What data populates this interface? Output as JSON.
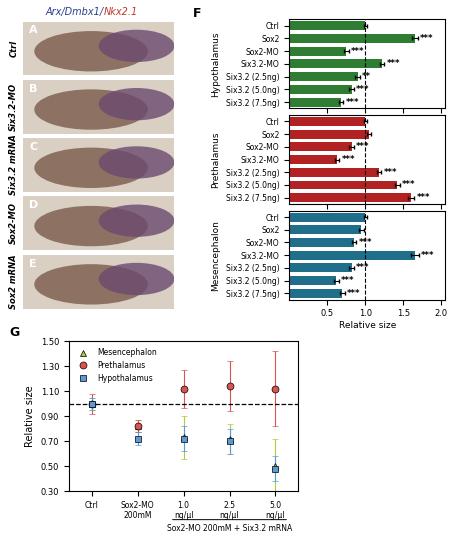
{
  "images": {
    "header": [
      {
        "text": "Arx/Dmbx1/",
        "color": "#2a3f8f"
      },
      {
        "text": "Nkx2.1",
        "color": "#c0392b"
      }
    ],
    "panels": [
      {
        "letter": "A",
        "label": "Ctrl"
      },
      {
        "letter": "B",
        "label": "Six3.2-MO"
      },
      {
        "letter": "C",
        "label": "Six3.2 mRNA"
      },
      {
        "letter": "D",
        "label": "Sox2-MO"
      },
      {
        "letter": "E",
        "label": "Sox2 mRNA"
      }
    ]
  },
  "chart_data": [
    {
      "type": "bar",
      "orientation": "horizontal",
      "panel_label": "F",
      "group": "Hypothalamus",
      "color": "#2e7d32",
      "categories": [
        "Ctrl",
        "Sox2",
        "Sox2-MO",
        "Six3.2-MO",
        "Six3.2 (2.5ng)",
        "Six3.2 (5.0ng)",
        "Six3.2 (7.5ng)"
      ],
      "values": [
        1.0,
        1.65,
        0.75,
        1.22,
        0.9,
        0.82,
        0.68
      ],
      "errors": [
        0.02,
        0.04,
        0.03,
        0.03,
        0.03,
        0.03,
        0.03
      ],
      "significance": [
        null,
        "***",
        "***",
        "***",
        "**",
        "***",
        "***"
      ],
      "xlim": [
        0,
        2.05
      ],
      "xticks": [
        0.5,
        1.0,
        1.5,
        2.0
      ],
      "reference_line": 1.0,
      "tick_labels": "y"
    },
    {
      "type": "bar",
      "orientation": "horizontal",
      "group": "Prethalamus",
      "color": "#b22222",
      "categories": [
        "Ctrl",
        "Sox2",
        "Sox2-MO",
        "Six3.2-MO",
        "Six3.2 (2.5ng)",
        "Six3.2 (5.0ng)",
        "Six3.2 (7.5ng)"
      ],
      "values": [
        1.0,
        1.05,
        0.82,
        0.63,
        1.18,
        1.42,
        1.6
      ],
      "errors": [
        0.02,
        0.03,
        0.03,
        0.03,
        0.03,
        0.03,
        0.04
      ],
      "significance": [
        null,
        null,
        "***",
        "***",
        "***",
        "***",
        "***"
      ],
      "xlim": [
        0,
        2.05
      ],
      "xticks": [
        0.5,
        1.0,
        1.5,
        2.0
      ],
      "reference_line": 1.0,
      "tick_labels": "y"
    },
    {
      "type": "bar",
      "orientation": "horizontal",
      "group": "Mesencephalon",
      "color": "#1f6f8b",
      "categories": [
        "Ctrl",
        "Sox2",
        "Sox2-MO",
        "Six3.2-MO",
        "Six3.2 (2.5ng)",
        "Six3.2 (5.0ng)",
        "Six3.2 (7.5ng)"
      ],
      "values": [
        1.0,
        0.95,
        0.85,
        1.65,
        0.82,
        0.62,
        0.7
      ],
      "errors": [
        0.02,
        0.03,
        0.03,
        0.05,
        0.03,
        0.03,
        0.03
      ],
      "significance": [
        null,
        null,
        "***",
        "***",
        "***",
        "***",
        "***"
      ],
      "xlim": [
        0,
        2.05
      ],
      "xticks": [
        0.5,
        1.0,
        1.5,
        2.0
      ],
      "reference_line": 1.0,
      "x_label": "Relative size"
    },
    {
      "type": "scatter",
      "panel_label": "G",
      "y_label": "Relative size",
      "legend": "upper left",
      "categories": [
        "Ctrl",
        "Sox2-MO 200mM",
        "1.0 ng/µl",
        "2.5 ng/µl",
        "5.0 ng/µl"
      ],
      "group_label": "Sox2-MO 200mM + Six3.2 mRNA",
      "series": [
        {
          "name": "Mesencephalon",
          "color": "#b5c93a",
          "marker": "triangle",
          "values": [
            1.0,
            0.82,
            0.73,
            0.72,
            0.5
          ],
          "errors": [
            0.05,
            0.05,
            0.17,
            0.12,
            0.22
          ]
        },
        {
          "name": "Prethalamus",
          "color": "#d9534f",
          "marker": "circle",
          "values": [
            1.0,
            0.82,
            1.12,
            1.14,
            1.12
          ],
          "errors": [
            0.08,
            0.05,
            0.15,
            0.2,
            0.3
          ]
        },
        {
          "name": "Hypothalamus",
          "color": "#5b9bd5",
          "marker": "square",
          "values": [
            1.0,
            0.72,
            0.72,
            0.7,
            0.48
          ],
          "errors": [
            0.05,
            0.05,
            0.1,
            0.1,
            0.1
          ]
        }
      ],
      "ylim": [
        0.3,
        1.5
      ],
      "yticks": [
        {
          "value": 0.3,
          "label": "0.30"
        },
        {
          "value": 0.5,
          "label": "0.50"
        },
        {
          "value": 0.7,
          "label": "0.70"
        },
        {
          "value": 0.9,
          "label": "0.90"
        },
        {
          "value": 1.1,
          "label": "1.10"
        },
        {
          "value": 1.3,
          "label": "1.30"
        },
        {
          "value": 1.5,
          "label": "1.50"
        }
      ],
      "reference_line": 1.0
    }
  ]
}
